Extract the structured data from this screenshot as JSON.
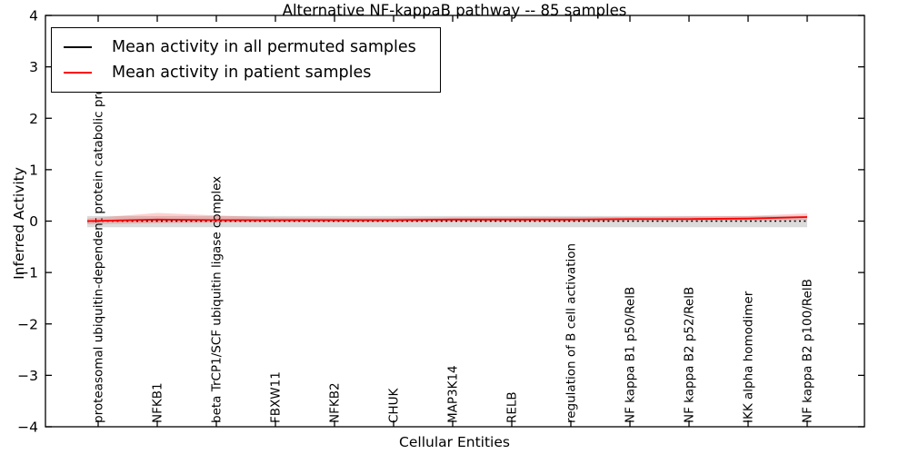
{
  "figure_title": "Alternative NF-kappaB pathway -- 85 samples",
  "legend": {
    "items": [
      {
        "label": "Mean activity in all permuted samples",
        "color": "#000000"
      },
      {
        "label": "Mean activity in patient samples",
        "color": "#ff0000"
      }
    ]
  },
  "chart_data": {
    "type": "line",
    "title": "Alternative NF-kappaB pathway -- 85 samples",
    "xlabel": "Cellular Entities",
    "ylabel": "Inferred Activity",
    "ylim": [
      -4,
      4
    ],
    "yticks": [
      4,
      3,
      2,
      1,
      0,
      -1,
      -2,
      -3,
      -4
    ],
    "ytick_labels": [
      "4",
      "3",
      "2",
      "1",
      "0",
      "−1",
      "−2",
      "−3",
      "−4"
    ],
    "x_category_rotation_deg": 90,
    "grid": false,
    "frame": true,
    "legend_position": "upper left",
    "categories": [
      "proteasomal ubiquitin-dependent protein catabolic pro",
      "NFKB1",
      "beta TrCP1/SCF ubiquitin ligase complex",
      "FBXW11",
      "NFKB2",
      "CHUK",
      "MAP3K14",
      "RELB",
      "regulation of B cell activation",
      "NF kappa B1 p50/RelB",
      "NF kappa B2 p52/RelB",
      "IKK alpha homodimer",
      "NF kappa B2 p100/RelB"
    ],
    "series": [
      {
        "name": "Mean activity in all permuted samples",
        "color": "#000000",
        "style": "dotted",
        "values": [
          0,
          0,
          0,
          0,
          0,
          0,
          0,
          0,
          0,
          0,
          0,
          0,
          0
        ]
      },
      {
        "name": "Mean activity in patient samples",
        "color": "#ff0000",
        "style": "solid",
        "values": [
          0.0,
          0.03,
          0.02,
          0.02,
          0.02,
          0.02,
          0.03,
          0.03,
          0.03,
          0.04,
          0.04,
          0.05,
          0.08
        ]
      }
    ],
    "bands": [
      {
        "name": "permuted-samples-range-band",
        "color": "rgba(110,110,110,0.25)",
        "lo": [
          -0.12,
          -0.12,
          -0.12,
          -0.12,
          -0.12,
          -0.12,
          -0.12,
          -0.12,
          -0.12,
          -0.12,
          -0.12,
          -0.12,
          -0.12
        ],
        "hi": [
          0.1,
          0.1,
          0.1,
          0.1,
          0.1,
          0.1,
          0.1,
          0.1,
          0.1,
          0.1,
          0.1,
          0.1,
          0.1
        ]
      },
      {
        "name": "patient-samples-range-band",
        "color": "rgba(255,0,0,0.18)",
        "lo": [
          -0.06,
          -0.04,
          -0.03,
          -0.02,
          -0.02,
          -0.02,
          -0.01,
          -0.01,
          -0.01,
          0.0,
          0.0,
          0.01,
          0.02
        ],
        "hi": [
          0.05,
          0.16,
          0.11,
          0.07,
          0.06,
          0.06,
          0.07,
          0.07,
          0.08,
          0.08,
          0.09,
          0.1,
          0.15
        ]
      }
    ]
  }
}
